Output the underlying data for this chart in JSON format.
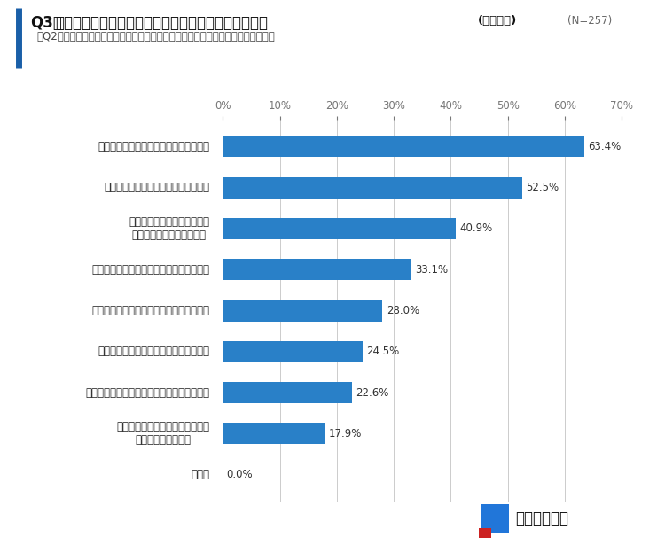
{
  "title_q": "Q3．",
  "title_main": "災害によるお金の不安を感じている理由は何ですか？",
  "title_fukusu": "(複数回答)",
  "title_n": "(N=257)",
  "title_sub": "（Q2で「とても不安を感じている」「やや不安を感じている」と回答した人のみ）",
  "categories": [
    "復旧には多くの費用がかかりそうだから",
    "復旧にかかる費用が予測できないから",
    "貯蓄がないなど復旧のための\n費用が足りないと思うから",
    "災害に備えたお金の準備をしていないから",
    "保険金や支援金が受け取れるか心配だから",
    "災害に備えた保険に加入していないから",
    "被災後に今の収入が維持できるか心配だから",
    "被災後の住宅ローンや家賃などの\n支払いが心配だから",
    "その他"
  ],
  "values": [
    63.4,
    52.5,
    40.9,
    33.1,
    28.0,
    24.5,
    22.6,
    17.9,
    0.0
  ],
  "bar_color": "#2980C8",
  "value_labels": [
    "63.4%",
    "52.5%",
    "40.9%",
    "33.1%",
    "28.0%",
    "24.5%",
    "22.6%",
    "17.9%",
    "0.0%"
  ],
  "xlim": [
    0,
    70
  ],
  "xticks": [
    0,
    10,
    20,
    30,
    40,
    50,
    60,
    70
  ],
  "xtick_labels": [
    "0%",
    "10%",
    "20%",
    "30%",
    "40%",
    "50%",
    "60%",
    "70%"
  ],
  "bg_color": "#ffffff",
  "grid_color": "#cccccc",
  "bar_height": 0.52,
  "accent_color": "#1a5fa8",
  "logo_blue": "#2176d9",
  "logo_red": "#cc2222",
  "logo_text": "コのほけん！"
}
